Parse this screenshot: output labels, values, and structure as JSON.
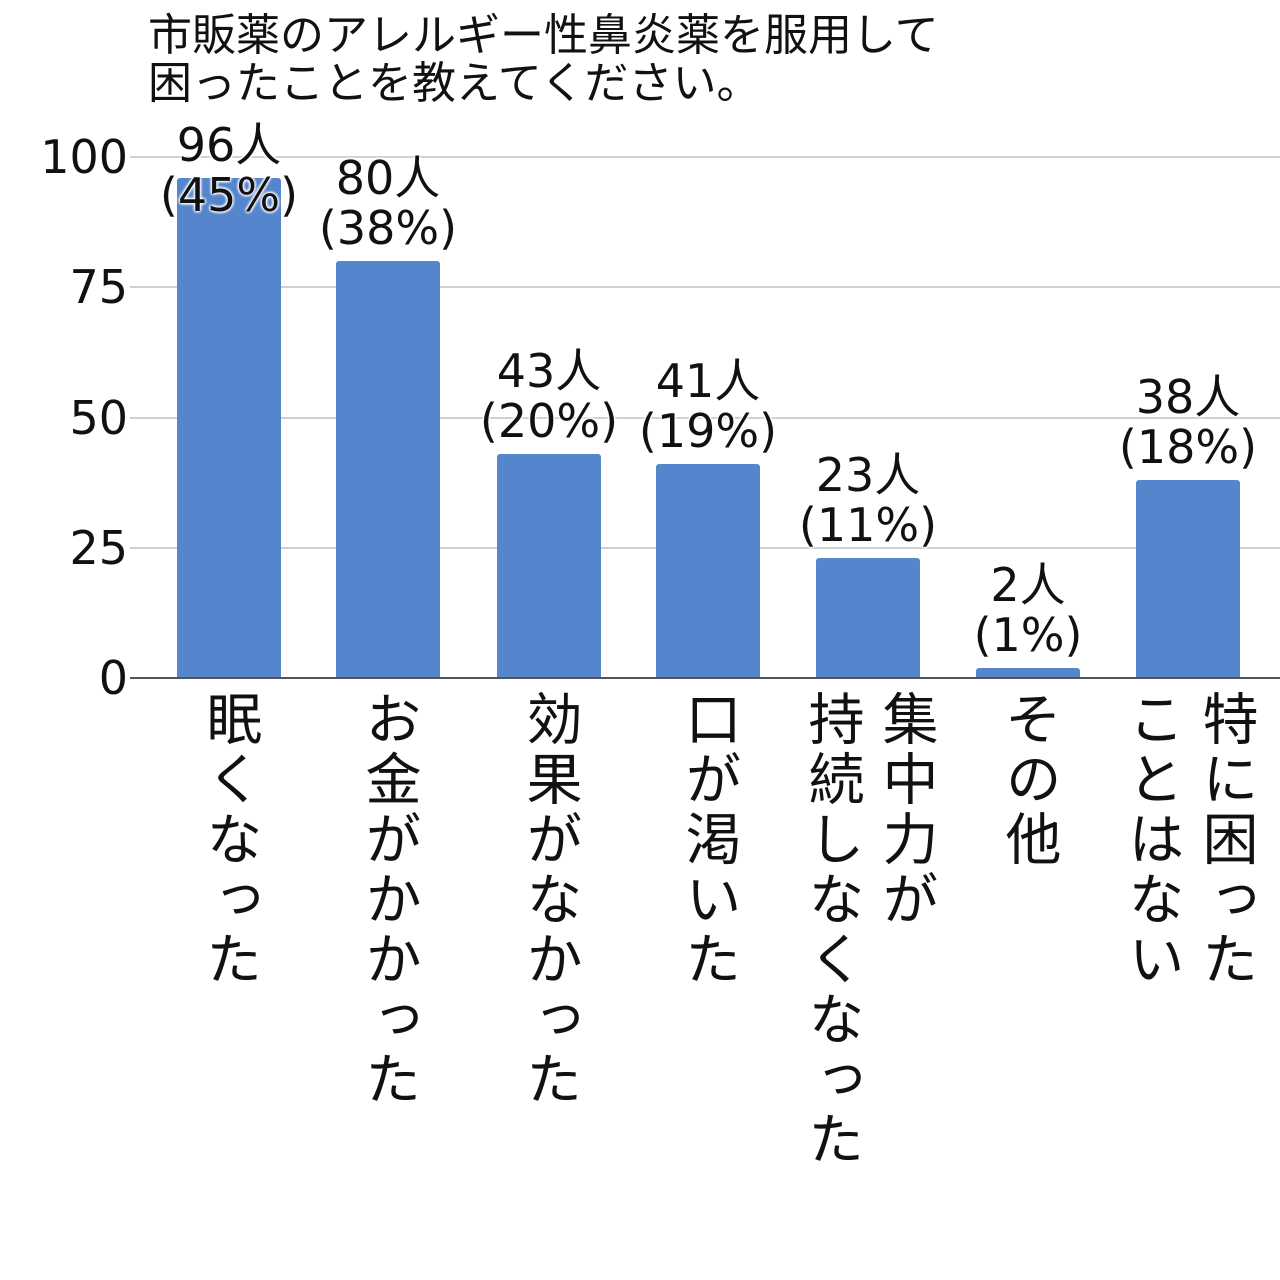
{
  "chart_data": {
    "type": "bar",
    "title": "市販薬のアレルギー性鼻炎薬を服用して\n困ったことを教えてください。",
    "categories": [
      "眠くなった",
      "お金がかかった",
      "効果がなかった",
      "口が渇いた",
      "集中力が\n持続しなくなった",
      "その他",
      "特に困った\nことはない"
    ],
    "values": [
      96,
      80,
      43,
      41,
      23,
      2,
      38
    ],
    "percent_labels": [
      "(45%)",
      "(38%)",
      "(20%)",
      "(19%)",
      "(11%)",
      "(1%)",
      "(18%)"
    ],
    "value_labels": [
      "96人",
      "80人",
      "43人",
      "41人",
      "23人",
      "2人",
      "38人"
    ],
    "ylim": [
      0,
      100
    ],
    "yticks": [
      0,
      25,
      50,
      75,
      100
    ],
    "grid": true,
    "bar_color": "#5585cc",
    "xlabel": "",
    "ylabel": ""
  }
}
